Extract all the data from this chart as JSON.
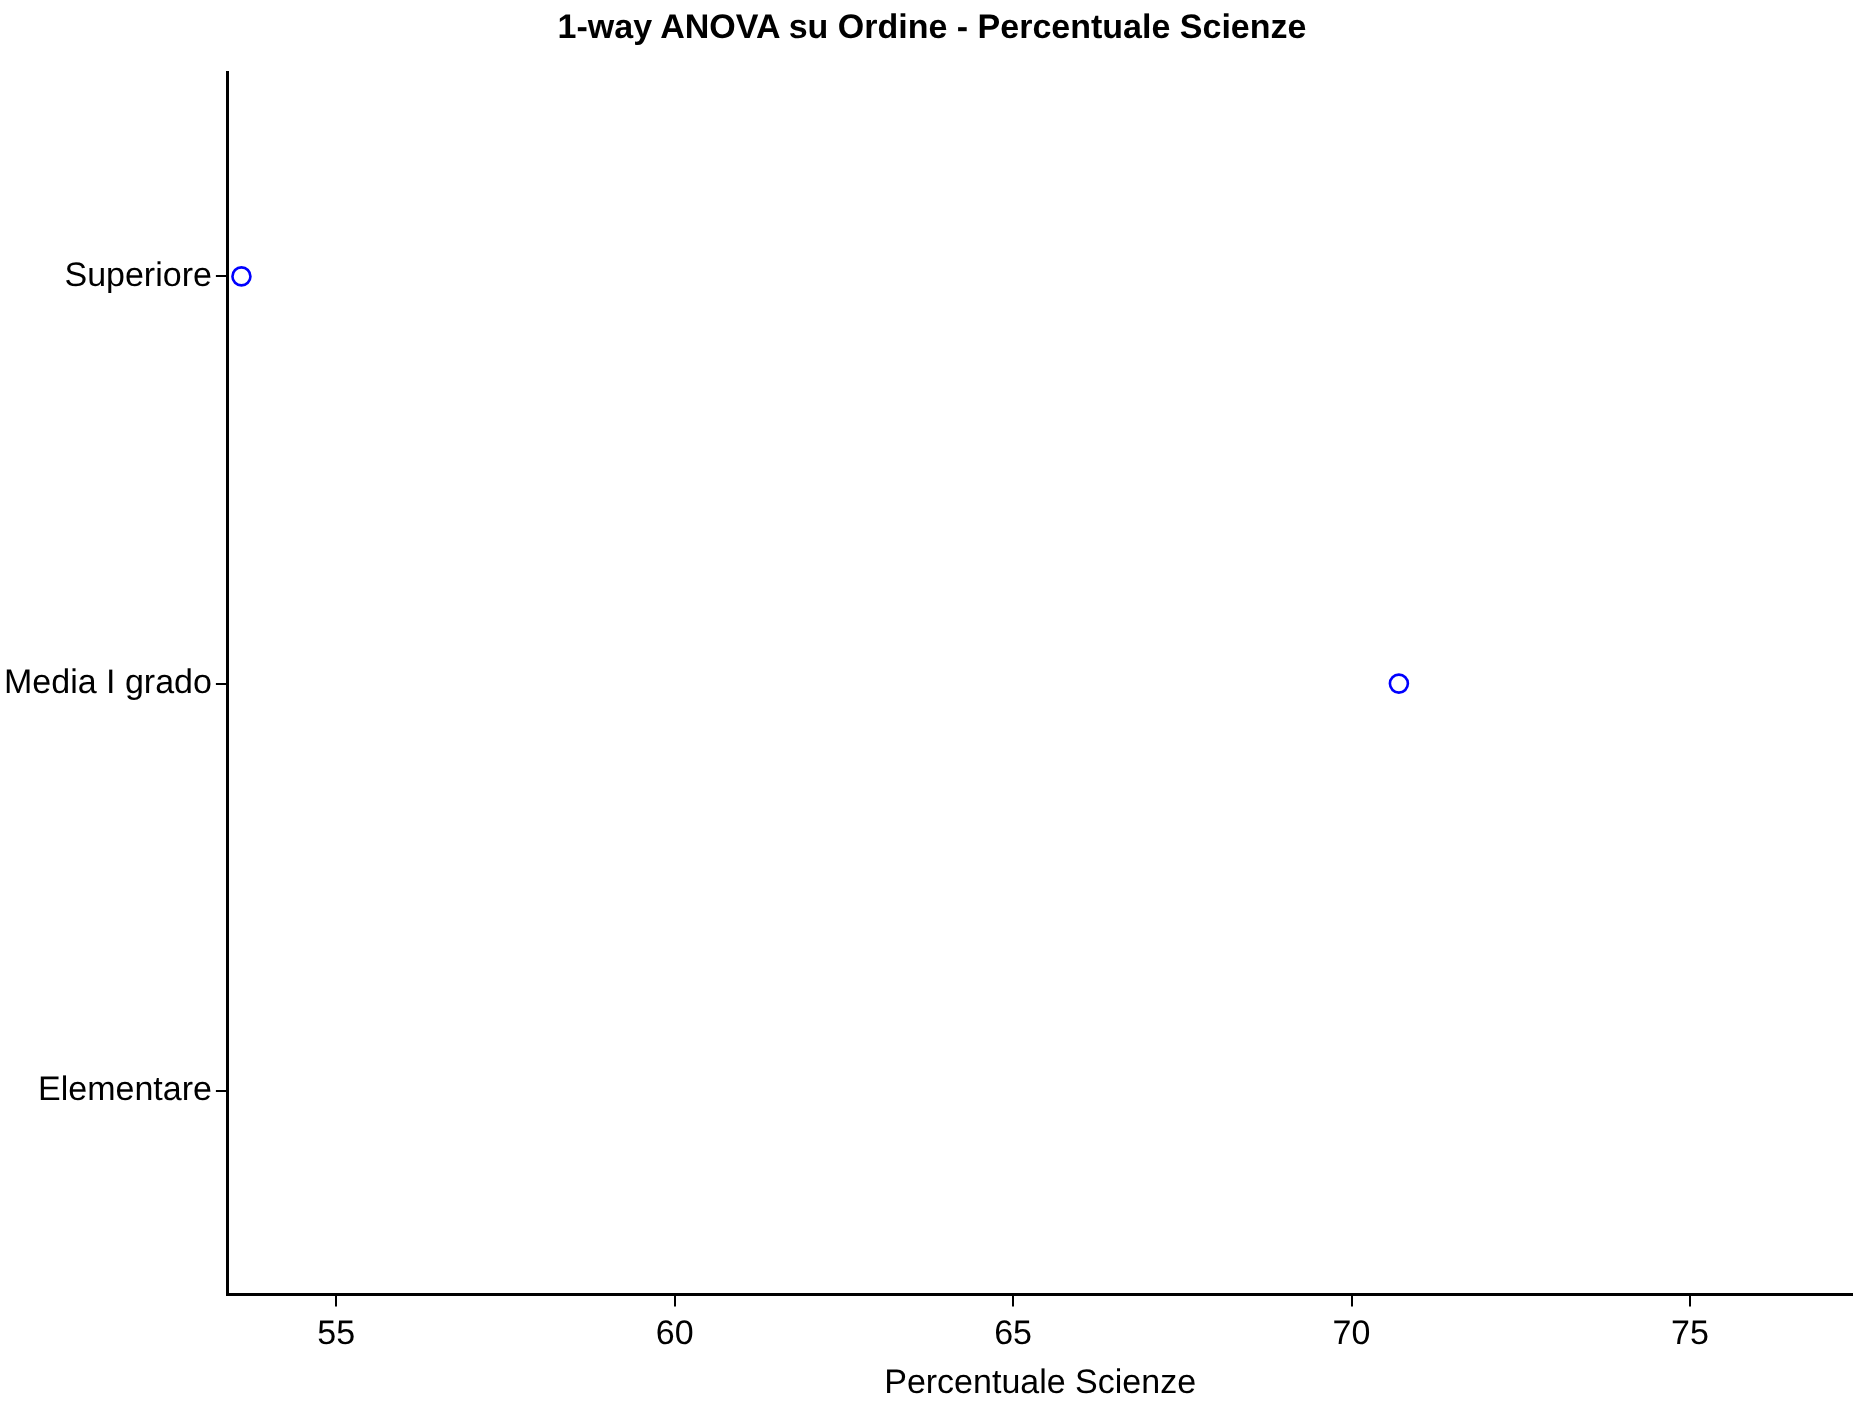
{
  "chart_data": {
    "type": "scatter",
    "orientation": "horizontal",
    "title": "1-way ANOVA su Ordine - Percentuale Scienze",
    "xlabel": "Percentuale Scienze",
    "categories": [
      "Superiore",
      "Media I grado",
      "Elementare"
    ],
    "series": [
      {
        "color": "#0000ff",
        "values": [
          53.6,
          70.7,
          null
        ]
      }
    ],
    "xlim": [
      53.4,
      77.4
    ],
    "xticks": [
      55,
      60,
      65,
      70,
      75
    ],
    "marker": "circle",
    "grid": false,
    "legend": false
  }
}
